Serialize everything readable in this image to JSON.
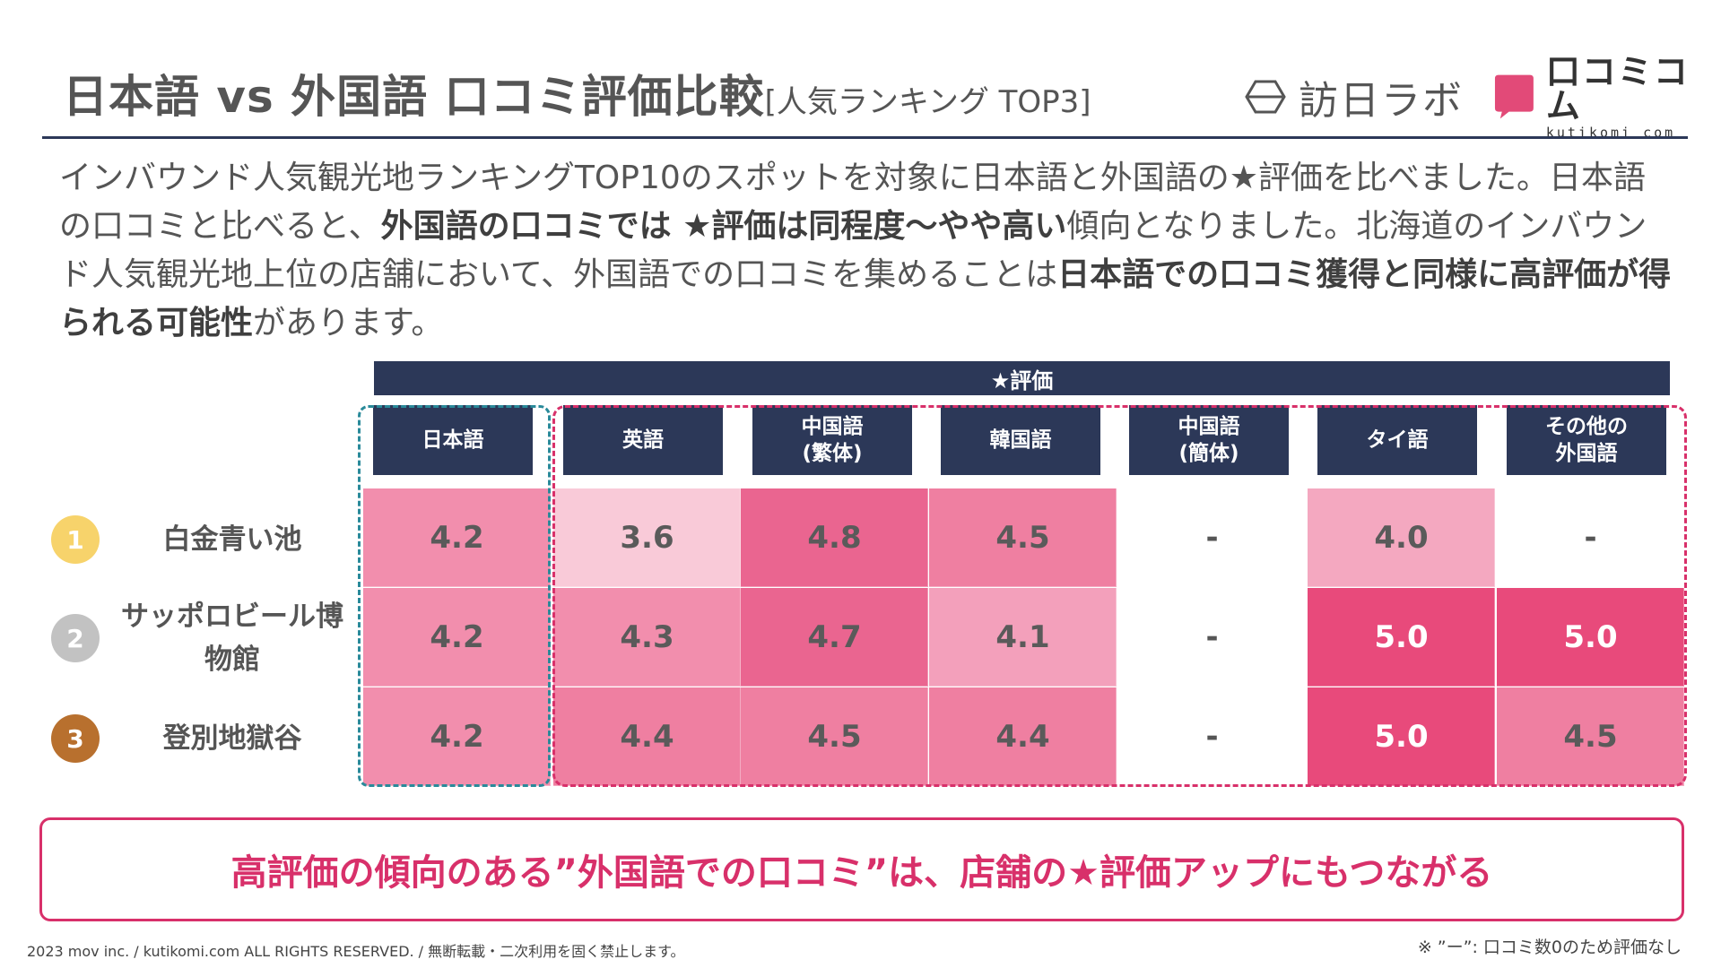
{
  "header": {
    "title": "日本語 vs 外国語 口コミ評価比較",
    "subtitle": "[人気ランキング TOP3]",
    "logo1_text": "訪日ラボ",
    "logo2_text": "口コミコム",
    "logo2_sub": "kutikomi com"
  },
  "intro": {
    "p1": "インバウンド人気観光地ランキングTOP10のスポットを対象に日本語と外国語の★評価を比べました。日本語の口コミと比べると、",
    "b1": "外国語の口コミでは ★評価は同程度～やや高い",
    "p2": "傾向となりました。北海道のインバウンド人気観光地上位の店舗において、外国語での口コミを集めることは",
    "b2": "日本語での口コミ獲得と同様に高評価が得られる可能性",
    "p3": "があります。"
  },
  "table": {
    "rating_header": "★評価",
    "columns": [
      "日本語",
      "英語",
      "中国語\n(繁体)",
      "韓国語",
      "中国語\n(簡体)",
      "タイ語",
      "その他の\n外国語"
    ],
    "rows": [
      {
        "rank": "1",
        "rank_color": "#f7d36b",
        "spot": "白金青い池",
        "values": [
          "4.2",
          "3.6",
          "4.8",
          "4.5",
          "-",
          "4.0",
          "-"
        ]
      },
      {
        "rank": "2",
        "rank_color": "#c2c2c2",
        "spot": "サッポロビール博物館",
        "values": [
          "4.2",
          "4.3",
          "4.7",
          "4.1",
          "-",
          "5.0",
          "5.0"
        ]
      },
      {
        "rank": "3",
        "rank_color": "#b8702e",
        "spot": "登別地獄谷",
        "values": [
          "4.2",
          "4.4",
          "4.5",
          "4.4",
          "-",
          "5.0",
          "4.5"
        ]
      }
    ]
  },
  "callout": "高評価の傾向のある”外国語での口コミ”は、店舗の★評価アップにもつながる",
  "copyright": "2023 mov inc. / kutikomi.com ALL RIGHTS RESERVED. / 無断転載・二次利用を固く禁止します。",
  "footnote": "※ ”ー”: 口コミ数0のため評価なし",
  "colors": {
    "navy": "#2c3858",
    "accent": "#d8306a",
    "teal": "#2a8a9a"
  }
}
